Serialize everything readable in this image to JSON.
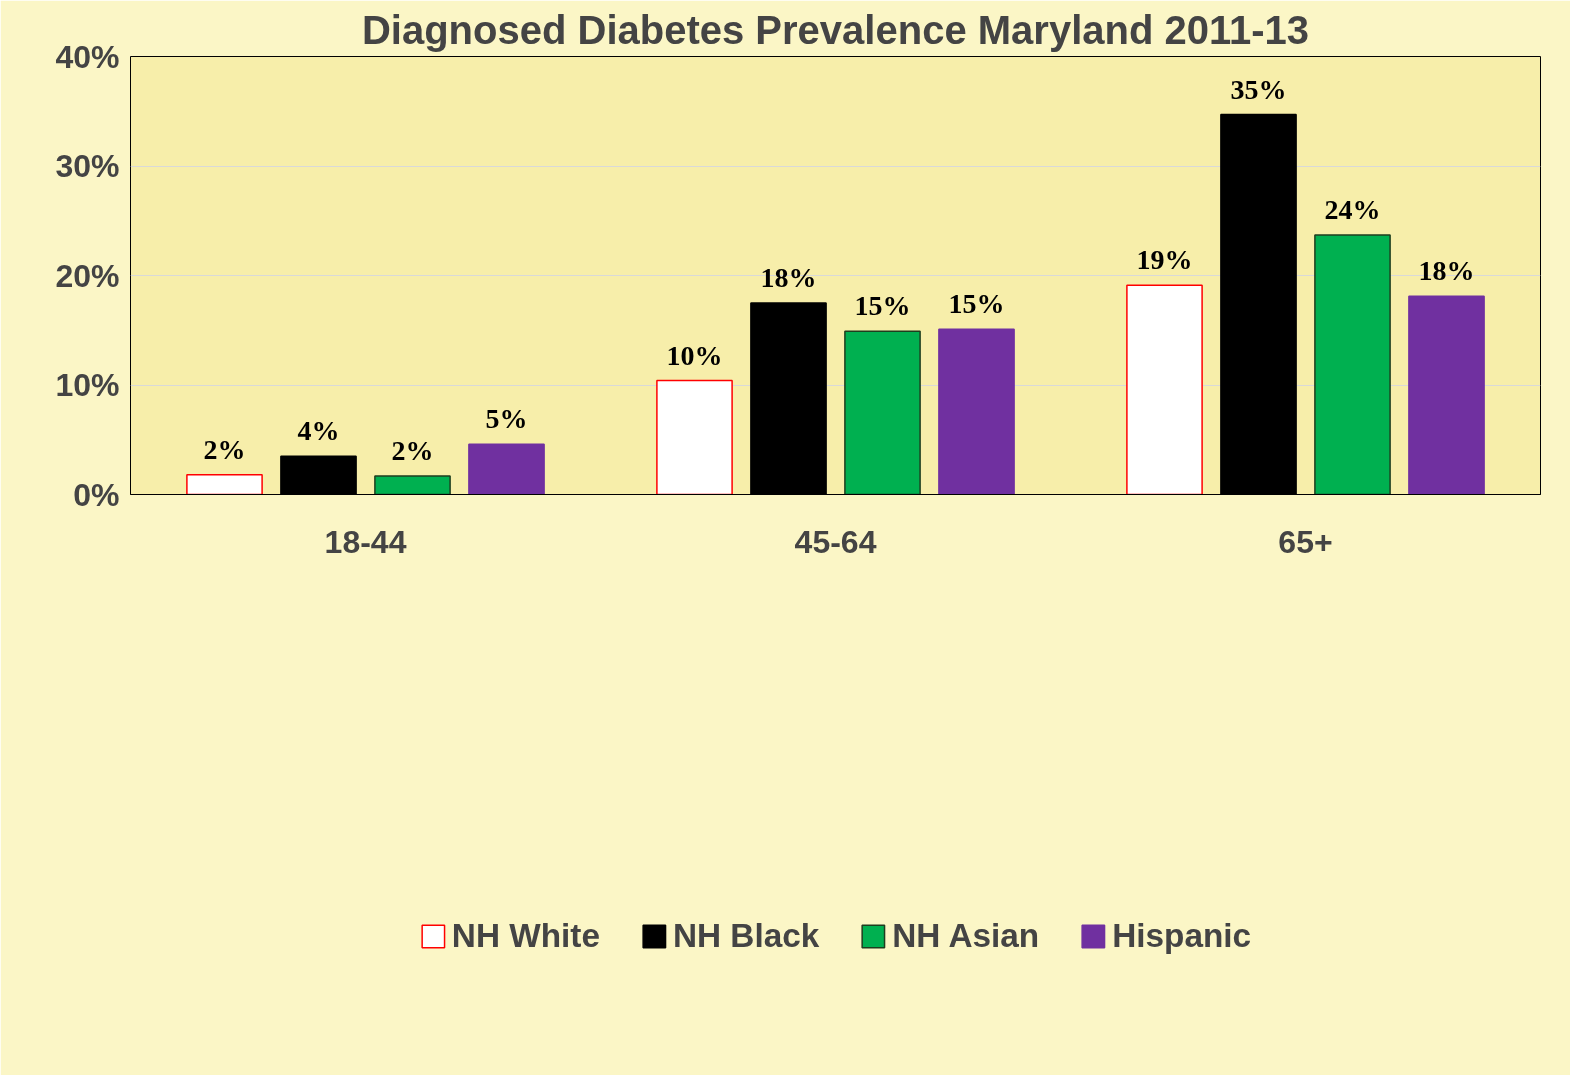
{
  "chart_data": {
    "type": "bar",
    "title": "Diagnosed Diabetes Prevalence Maryland 2011-13",
    "categories": [
      "18-44",
      "45-64",
      "65+"
    ],
    "series": [
      {
        "name": "NH White",
        "color": "#ffffff",
        "values": [
          1.8,
          10.4,
          19.1
        ],
        "value_labels": [
          "2%",
          "10%",
          "19%"
        ]
      },
      {
        "name": "NH Black",
        "color": "#000000",
        "values": [
          3.5,
          17.5,
          34.7
        ],
        "value_labels": [
          "4%",
          "18%",
          "35%"
        ]
      },
      {
        "name": "NH Asian",
        "color": "#00b050",
        "values": [
          1.7,
          14.9,
          23.7
        ],
        "value_labels": [
          "2%",
          "15%",
          "24%"
        ]
      },
      {
        "name": "Hispanic",
        "color": "#7030a0",
        "values": [
          4.6,
          15.1,
          18.1
        ],
        "value_labels": [
          "5%",
          "15%",
          "18%"
        ]
      }
    ],
    "ylim": [
      0,
      40
    ],
    "yticks": [
      {
        "value": 0,
        "label": "0%"
      },
      {
        "value": 10,
        "label": "10%"
      },
      {
        "value": 20,
        "label": "20%"
      },
      {
        "value": 30,
        "label": "30%"
      },
      {
        "value": 40,
        "label": "40%"
      }
    ],
    "grid": "y",
    "legend": "bottom"
  }
}
